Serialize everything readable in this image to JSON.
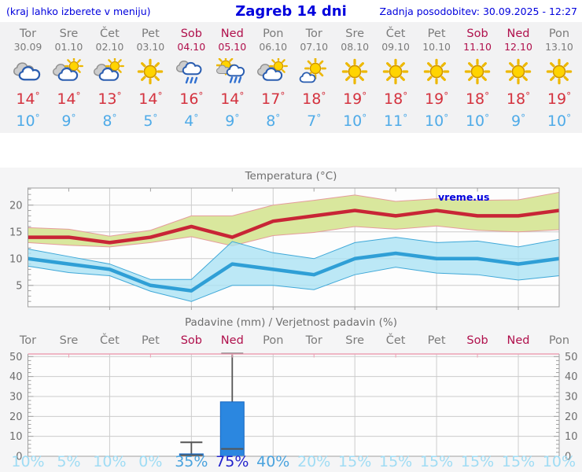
{
  "header": {
    "left_hint": "(kraj lahko izberete v meniju)",
    "title": "Zagreb 14 dni",
    "last_update": "Zadnja posodobitev: 30.09.2025 - 12:27"
  },
  "deg_symbol": "°",
  "days": [
    {
      "name": "Tor",
      "date": "30.09",
      "weekend": false,
      "icon": "cloudy",
      "tmax": "14",
      "tmin": "10",
      "precip_prob": "10%",
      "prob_level": "low"
    },
    {
      "name": "Sre",
      "date": "01.10",
      "weekend": false,
      "icon": "partly-cloudy",
      "tmax": "14",
      "tmin": "9",
      "precip_prob": "5%",
      "prob_level": "low"
    },
    {
      "name": "Čet",
      "date": "02.10",
      "weekend": false,
      "icon": "partly-cloudy",
      "tmax": "13",
      "tmin": "8",
      "precip_prob": "10%",
      "prob_level": "low"
    },
    {
      "name": "Pet",
      "date": "03.10",
      "weekend": false,
      "icon": "sunny",
      "tmax": "14",
      "tmin": "5",
      "precip_prob": "0%",
      "prob_level": "low"
    },
    {
      "name": "Sob",
      "date": "04.10",
      "weekend": true,
      "icon": "rain",
      "tmax": "16",
      "tmin": "4",
      "precip_prob": "35%",
      "prob_level": "mid"
    },
    {
      "name": "Ned",
      "date": "05.10",
      "weekend": true,
      "icon": "sun-rain",
      "tmax": "14",
      "tmin": "9",
      "precip_prob": "75%",
      "prob_level": "high"
    },
    {
      "name": "Pon",
      "date": "06.10",
      "weekend": false,
      "icon": "partly-cloudy",
      "tmax": "17",
      "tmin": "8",
      "precip_prob": "40%",
      "prob_level": "mid"
    },
    {
      "name": "Tor",
      "date": "07.10",
      "weekend": false,
      "icon": "mostly-sunny",
      "tmax": "18",
      "tmin": "7",
      "precip_prob": "20%",
      "prob_level": "low"
    },
    {
      "name": "Sre",
      "date": "08.10",
      "weekend": false,
      "icon": "sunny",
      "tmax": "19",
      "tmin": "10",
      "precip_prob": "15%",
      "prob_level": "low"
    },
    {
      "name": "Čet",
      "date": "09.10",
      "weekend": false,
      "icon": "sunny",
      "tmax": "18",
      "tmin": "11",
      "precip_prob": "15%",
      "prob_level": "low"
    },
    {
      "name": "Pet",
      "date": "10.10",
      "weekend": false,
      "icon": "sunny",
      "tmax": "19",
      "tmin": "10",
      "precip_prob": "15%",
      "prob_level": "low"
    },
    {
      "name": "Sob",
      "date": "11.10",
      "weekend": true,
      "icon": "sunny",
      "tmax": "18",
      "tmin": "10",
      "precip_prob": "15%",
      "prob_level": "low"
    },
    {
      "name": "Ned",
      "date": "12.10",
      "weekend": true,
      "icon": "sunny",
      "tmax": "18",
      "tmin": "9",
      "precip_prob": "15%",
      "prob_level": "low"
    },
    {
      "name": "Pon",
      "date": "13.10",
      "weekend": false,
      "icon": "sunny",
      "tmax": "19",
      "tmin": "10",
      "precip_prob": "10%",
      "prob_level": "low"
    }
  ],
  "chart_data": [
    {
      "type": "line",
      "title": "Temperatura (°C)",
      "watermark": "vreme.us",
      "categories": [
        "Tor 30.09",
        "Sre 01.10",
        "Čet 02.10",
        "Pet 03.10",
        "Sob 04.10",
        "Ned 05.10",
        "Pon 06.10",
        "Tor 07.10",
        "Sre 08.10",
        "Čet 09.10",
        "Pet 10.10",
        "Sob 11.10",
        "Ned 12.10",
        "Pon 13.10"
      ],
      "ylim": [
        1,
        23.2
      ],
      "yticks": [
        5,
        10,
        15,
        20
      ],
      "grid": true,
      "series": [
        {
          "name": "tmax",
          "values": [
            14,
            14,
            13,
            14,
            16,
            14,
            17,
            18,
            19,
            18,
            19,
            18,
            18,
            19
          ]
        },
        {
          "name": "tmax_band_high",
          "values": [
            15.8,
            15.5,
            14.2,
            15.3,
            18,
            18,
            20,
            20.9,
            21.9,
            20.7,
            21.2,
            20.9,
            21,
            22.4
          ]
        },
        {
          "name": "tmax_band_low",
          "values": [
            13,
            12.5,
            12.2,
            13,
            14.1,
            12.4,
            14.3,
            14.9,
            16,
            15.5,
            16.1,
            15.3,
            15,
            15.4
          ]
        },
        {
          "name": "tmin",
          "values": [
            10,
            9,
            8,
            5,
            4,
            9,
            8,
            7,
            10,
            11,
            10,
            10,
            9,
            10
          ]
        },
        {
          "name": "tmin_band_high",
          "values": [
            11.8,
            10.4,
            9,
            6.1,
            6.1,
            13.2,
            11.1,
            10,
            13,
            14,
            13,
            13.3,
            12.2,
            13.6
          ]
        },
        {
          "name": "tmin_band_low",
          "values": [
            8.6,
            7.4,
            6.8,
            3.9,
            2,
            5,
            5,
            4.2,
            7,
            8.4,
            7.3,
            7,
            6,
            6.8
          ]
        }
      ]
    },
    {
      "type": "bar",
      "title": "Padavine (mm) / Verjetnost padavin (%)",
      "categories": [
        "Tor 30.09",
        "Sre 01.10",
        "Čet 02.10",
        "Pet 03.10",
        "Sob 04.10",
        "Ned 05.10",
        "Pon 06.10",
        "Tor 07.10",
        "Sre 08.10",
        "Čet 09.10",
        "Pet 10.10",
        "Sob 11.10",
        "Ned 12.10",
        "Pon 13.10"
      ],
      "ylim": [
        0,
        51.3
      ],
      "yticks": [
        0,
        10,
        20,
        30,
        40,
        50
      ],
      "grid": true,
      "values_mm": [
        0,
        0,
        0,
        0,
        1.2,
        27.3,
        0,
        0,
        0,
        0,
        0,
        0,
        0,
        0
      ],
      "whisker_low_mm": [
        null,
        null,
        null,
        null,
        0.5,
        3.7,
        null,
        null,
        null,
        null,
        null,
        null,
        null,
        null
      ],
      "whisker_high_mm": [
        null,
        null,
        null,
        null,
        7,
        51.5,
        null,
        null,
        null,
        null,
        null,
        null,
        null,
        null
      ],
      "probability_pct": [
        10,
        5,
        10,
        0,
        35,
        75,
        40,
        20,
        15,
        15,
        15,
        15,
        15,
        10
      ]
    }
  ],
  "colors": {
    "link_blue": "#0000dd",
    "weekday_gray": "#7b7b7b",
    "weekend_red": "#b0104c",
    "tmax_text": "#d4323e",
    "tmin_text": "#4fabe8",
    "tmax_line": "#c82536",
    "tmax_band_fill": "#d9e79d",
    "tmax_band_edge": "#e59c9c",
    "tmin_line": "#2f9fd6",
    "tmin_band_fill": "#a9e2f3",
    "tmin_band_edge": "#3fa8d8",
    "bar_fill": "#2b87e0",
    "bar_edge": "#1566c0",
    "whisker": "#555555",
    "grid": "#cccccc",
    "frame": "#a0a0a0",
    "pink_frame": "#eba0b4",
    "chart_text": "#6e6e6e",
    "plot_bg": "#fdfdfd",
    "prob_low": "#9fdcf4",
    "prob_mid": "#4aa3de",
    "prob_high": "#2222cc",
    "strip_bg": "#f2f2f3",
    "section_bg": "#f5f5f6"
  }
}
